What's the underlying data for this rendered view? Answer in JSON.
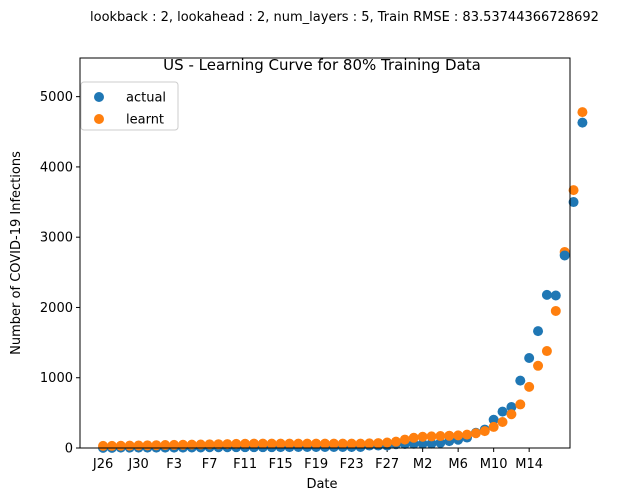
{
  "chart_data": {
    "type": "scatter",
    "suptitle": "lookback : 2, lookahead : 2, num_layers : 5, Train RMSE : 83.53744366728692",
    "title": "US - Learning Curve for 80% Training Data",
    "xlabel": "Date",
    "ylabel": "Number of COVID-19 Infections",
    "ylim": [
      0,
      5550
    ],
    "yticks": [
      0,
      1000,
      2000,
      3000,
      4000,
      5000
    ],
    "xtick_labels": [
      "J26",
      "J30",
      "F3",
      "F7",
      "F11",
      "F15",
      "F19",
      "F23",
      "F27",
      "M2",
      "M6",
      "M10",
      "M14"
    ],
    "xtick_positions": [
      0,
      4,
      8,
      12,
      16,
      20,
      24,
      28,
      32,
      36,
      40,
      44,
      48
    ],
    "xlim": [
      -2.6,
      52.6
    ],
    "legend": "top-left",
    "grid": false,
    "series": [
      {
        "name": "actual",
        "color": "#1f77b4",
        "x": [
          0,
          1,
          2,
          3,
          4,
          5,
          6,
          7,
          8,
          9,
          10,
          11,
          12,
          13,
          14,
          15,
          16,
          17,
          18,
          19,
          20,
          21,
          22,
          23,
          24,
          25,
          26,
          27,
          28,
          29,
          30,
          31,
          32,
          33,
          34,
          35,
          36,
          37,
          38,
          39,
          40,
          41,
          42,
          43,
          44,
          45,
          46,
          47,
          48,
          49,
          50
        ],
        "values": [
          2,
          2,
          5,
          5,
          5,
          5,
          5,
          5,
          5,
          6,
          7,
          8,
          11,
          11,
          11,
          12,
          12,
          12,
          12,
          12,
          13,
          13,
          14,
          15,
          15,
          15,
          15,
          15,
          15,
          15,
          35,
          35,
          35,
          53,
          57,
          60,
          60,
          63,
          74,
          98,
          118,
          149,
          217,
          262,
          402,
          518,
          583,
          959,
          1281,
          1663,
          2179
        ]
      },
      {
        "name": "learnt",
        "color": "#ff7f0e",
        "x": [
          0,
          1,
          2,
          3,
          4,
          5,
          6,
          7,
          8,
          9,
          10,
          11,
          12,
          13,
          14,
          15,
          16,
          17,
          18,
          19,
          20,
          21,
          22,
          23,
          24,
          25,
          26,
          27,
          28,
          29,
          30,
          31,
          32,
          33,
          34,
          35,
          36,
          37,
          38,
          39,
          40,
          41,
          42,
          43,
          44,
          45,
          46,
          47,
          48,
          49,
          50,
          51,
          52,
          53,
          54
        ],
        "values": [
          30,
          30,
          32,
          34,
          36,
          38,
          40,
          42,
          44,
          46,
          48,
          50,
          52,
          54,
          56,
          58,
          60,
          62,
          62,
          62,
          62,
          62,
          62,
          62,
          62,
          62,
          62,
          62,
          62,
          62,
          65,
          70,
          78,
          90,
          120,
          145,
          160,
          165,
          170,
          175,
          180,
          190,
          210,
          240,
          300,
          370,
          480,
          620,
          870,
          1170,
          1380,
          1950,
          2790,
          3670,
          4780
        ]
      },
      {
        "name": "actual",
        "color": "#1f77b4",
        "x": [
          51,
          52,
          53,
          54
        ],
        "values": [
          2170,
          2740,
          3500,
          4630
        ]
      }
    ]
  }
}
